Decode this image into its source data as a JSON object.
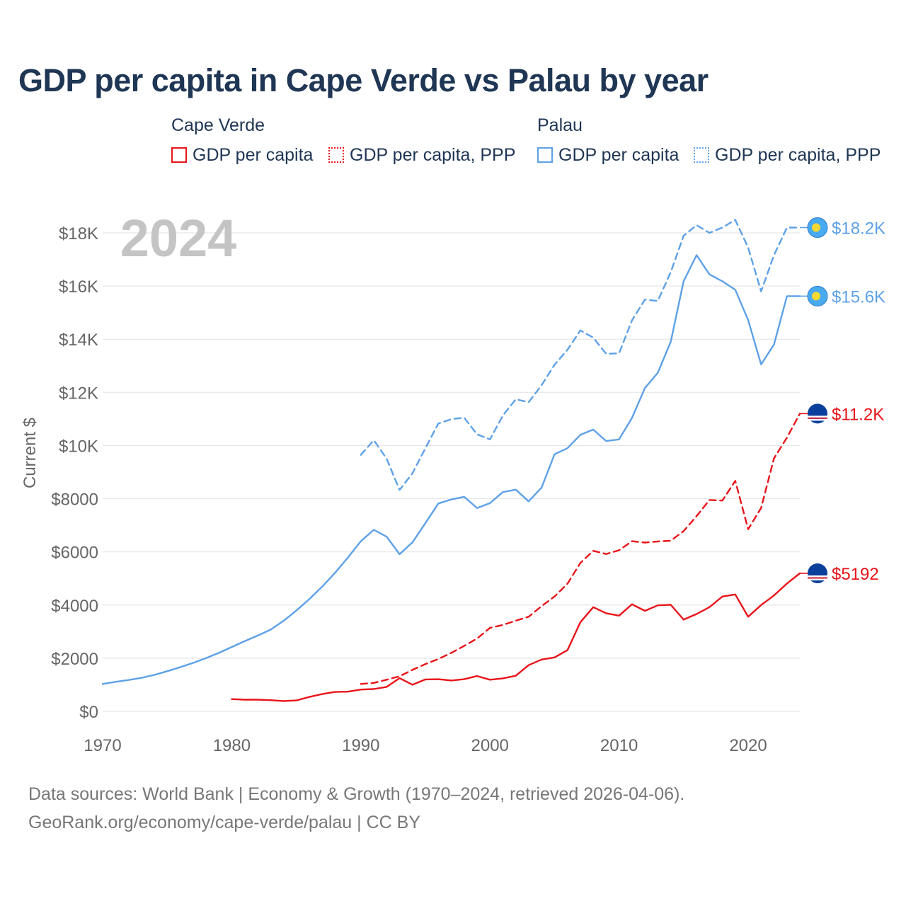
{
  "title": "GDP per capita in Cape Verde vs Palau by year",
  "legend": {
    "cape_verde": {
      "title": "Cape Verde",
      "gdp": "GDP per capita",
      "ppp": "GDP per capita, PPP"
    },
    "palau": {
      "title": "Palau",
      "gdp": "GDP per capita",
      "ppp": "GDP per capita, PPP"
    }
  },
  "colors": {
    "cape_verde": "#e8141a",
    "palau": "#5ea1e6",
    "grid": "#e6e6e6",
    "axis_text": "#666666",
    "year_label": "#c4c4c4"
  },
  "source_line1": "Data sources: World Bank | Economy & Growth (1970–2024, retrieved 2026-04-06).",
  "source_line2": "GeoRank.org/economy/cape-verde/palau | CC BY",
  "chart_data": {
    "type": "line",
    "title": "GDP per capita in Cape Verde vs Palau by year",
    "year_label": "2024",
    "ylabel": "Current $",
    "xlabel": "",
    "xlim": [
      1970,
      2024
    ],
    "ylim": [
      0,
      18000
    ],
    "x_ticks": [
      1970,
      1980,
      1990,
      2000,
      2010,
      2020
    ],
    "y_ticks": [
      0,
      2000,
      4000,
      6000,
      8000,
      10000,
      12000,
      14000,
      16000,
      18000
    ],
    "y_tick_labels": [
      "$0",
      "$2000",
      "$4000",
      "$6000",
      "$8000",
      "$10K",
      "$12K",
      "$14K",
      "$16K",
      "$18K"
    ],
    "series": [
      {
        "name": "Palau GDP per capita",
        "country": "palau",
        "style": "solid",
        "end_label": "$15.6K",
        "x": [
          1970,
          1971,
          1972,
          1973,
          1974,
          1975,
          1976,
          1977,
          1978,
          1979,
          1980,
          1981,
          1982,
          1983,
          1984,
          1985,
          1986,
          1987,
          1988,
          1989,
          1990,
          1991,
          1992,
          1993,
          1994,
          1995,
          1996,
          1997,
          1998,
          1999,
          2000,
          2001,
          2002,
          2003,
          2004,
          2005,
          2006,
          2007,
          2008,
          2009,
          2010,
          2011,
          2012,
          2013,
          2014,
          2015,
          2016,
          2017,
          2018,
          2019,
          2020,
          2021,
          2022,
          2023,
          2024
        ],
        "values": [
          1030,
          1110,
          1180,
          1260,
          1370,
          1510,
          1660,
          1820,
          2000,
          2200,
          2420,
          2640,
          2850,
          3070,
          3400,
          3790,
          4220,
          4690,
          5210,
          5790,
          6400,
          6830,
          6570,
          5910,
          6360,
          7080,
          7820,
          7970,
          8070,
          7650,
          7830,
          8250,
          8340,
          7900,
          8420,
          9670,
          9900,
          10400,
          10600,
          10170,
          10230,
          11040,
          12160,
          12740,
          13900,
          16180,
          17160,
          16440,
          16180,
          15860,
          14720,
          13050,
          13800,
          15620,
          15620
        ]
      },
      {
        "name": "Palau GDP per capita, PPP",
        "country": "palau",
        "style": "dashed",
        "end_label": "$18.2K",
        "x": [
          1990,
          1991,
          1992,
          1993,
          1994,
          1995,
          1996,
          1997,
          1998,
          1999,
          2000,
          2001,
          2002,
          2003,
          2004,
          2005,
          2006,
          2007,
          2008,
          2009,
          2010,
          2011,
          2012,
          2013,
          2014,
          2015,
          2016,
          2017,
          2018,
          2019,
          2020,
          2021,
          2022,
          2023,
          2024
        ],
        "values": [
          9650,
          10200,
          9500,
          8330,
          8960,
          9900,
          10830,
          10990,
          11050,
          10420,
          10230,
          11130,
          11740,
          11630,
          12270,
          13040,
          13600,
          14330,
          14060,
          13450,
          13470,
          14710,
          15490,
          15440,
          16520,
          17890,
          18290,
          18000,
          18200,
          18490,
          17440,
          15800,
          17160,
          18200,
          18200
        ]
      },
      {
        "name": "Cape Verde GDP per capita",
        "country": "cape_verde",
        "style": "solid",
        "end_label": "$5192",
        "x": [
          1980,
          1981,
          1982,
          1983,
          1984,
          1985,
          1986,
          1987,
          1988,
          1989,
          1990,
          1991,
          1992,
          1993,
          1994,
          1995,
          1996,
          1997,
          1998,
          1999,
          2000,
          2001,
          2002,
          2003,
          2004,
          2005,
          2006,
          2007,
          2008,
          2009,
          2010,
          2011,
          2012,
          2013,
          2014,
          2015,
          2016,
          2017,
          2018,
          2019,
          2020,
          2021,
          2022,
          2023,
          2024
        ],
        "values": [
          460,
          440,
          440,
          420,
          390,
          410,
          540,
          650,
          730,
          740,
          820,
          840,
          920,
          1250,
          1000,
          1200,
          1210,
          1160,
          1210,
          1330,
          1190,
          1240,
          1340,
          1740,
          1950,
          2030,
          2300,
          3350,
          3920,
          3690,
          3600,
          4030,
          3780,
          3990,
          4010,
          3450,
          3660,
          3920,
          4320,
          4400,
          3560,
          4000,
          4360,
          4810,
          5192
        ]
      },
      {
        "name": "Cape Verde GDP per capita, PPP",
        "country": "cape_verde",
        "style": "dashed",
        "end_label": "$11.2K",
        "x": [
          1990,
          1991,
          1992,
          1993,
          1994,
          1995,
          1996,
          1997,
          1998,
          1999,
          2000,
          2001,
          2002,
          2003,
          2004,
          2005,
          2006,
          2007,
          2008,
          2009,
          2010,
          2011,
          2012,
          2013,
          2014,
          2015,
          2016,
          2017,
          2018,
          2019,
          2020,
          2021,
          2022,
          2023,
          2024
        ],
        "values": [
          1030,
          1070,
          1190,
          1320,
          1560,
          1780,
          1970,
          2200,
          2460,
          2740,
          3140,
          3250,
          3410,
          3560,
          3960,
          4320,
          4800,
          5580,
          6040,
          5920,
          6060,
          6400,
          6350,
          6390,
          6420,
          6780,
          7340,
          7950,
          7930,
          8670,
          6850,
          7650,
          9520,
          10300,
          11200
        ]
      }
    ]
  }
}
